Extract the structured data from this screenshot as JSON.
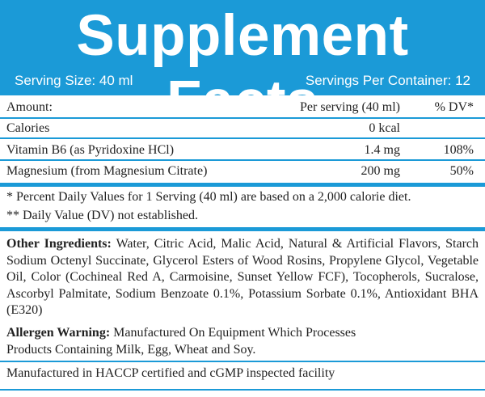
{
  "header": {
    "title": "Supplement Facts",
    "serving_size": "Serving Size: 40 ml",
    "servings_per_container": "Servings Per Container: 12"
  },
  "table": {
    "columns": [
      "Amount:",
      "Per serving (40 ml)",
      "% DV*"
    ],
    "rows": [
      {
        "name": "Calories",
        "amount": "0 kcal"
      },
      {
        "name": "Vitamin B6 (as Pyridoxine HCl)",
        "amount": "1.4 mg",
        "dv": "108%"
      },
      {
        "name": "Magnesium (from Magnesium Citrate)",
        "amount": "200 mg",
        "dv": "50%"
      }
    ]
  },
  "footnotes": [
    "* Percent Daily Values for 1 Serving (40 ml) are based on a 2,000 calorie diet.",
    "** Daily Value (DV) not established."
  ],
  "other_ingredients": {
    "label": "Other Ingredients:",
    "text": "Water, Citric Acid, Malic Acid, Natural & Artificial Flavors, Starch Sodium Octenyl Succinate, Glycerol Esters of Wood Rosins, Propylene Glycol, Vegetable Oil, Color (Cochineal Red A, Carmoisine, Sunset Yellow FCF), Tocopherols, Sucralose, Ascorbyl Palmitate, Sodium Benzoate 0.1%, Potassium Sorbate 0.1%, Antioxidant BHA (E320)"
  },
  "allergen": {
    "label": "Allergen Warning:",
    "text": "Manufactured On Equipment Which Processes Products Containing Milk, Egg, Wheat and Soy."
  },
  "manufacturing": "Manufactured in HACCP certified and cGMP inspected facility"
}
